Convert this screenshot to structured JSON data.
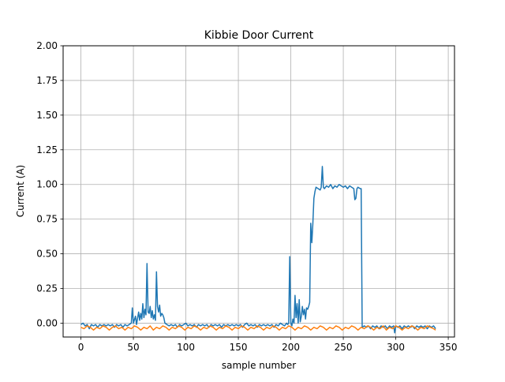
{
  "chart_data": {
    "type": "line",
    "title": "Kibbie Door Current",
    "xlabel": "sample number",
    "ylabel": "Current (A)",
    "xlim": [
      -16.95,
      355.95
    ],
    "ylim": [
      -0.1,
      2.0
    ],
    "x_ticks": [
      0,
      50,
      100,
      150,
      200,
      250,
      300,
      350
    ],
    "y_ticks": [
      0.0,
      0.25,
      0.5,
      0.75,
      1.0,
      1.25,
      1.5,
      1.75,
      2.0
    ],
    "x_tick_labels": [
      "0",
      "50",
      "100",
      "150",
      "200",
      "250",
      "300",
      "350"
    ],
    "y_tick_labels": [
      "0.00",
      "0.25",
      "0.50",
      "0.75",
      "1.00",
      "1.25",
      "1.50",
      "1.75",
      "2.00"
    ],
    "grid": true,
    "legend": "none",
    "series": [
      {
        "color": "#1f77b4",
        "points": [
          [
            0,
            -0.01
          ],
          [
            2,
            0.0
          ],
          [
            4,
            -0.02
          ],
          [
            6,
            -0.01
          ],
          [
            8,
            -0.04
          ],
          [
            10,
            -0.01
          ],
          [
            12,
            -0.02
          ],
          [
            14,
            -0.01
          ],
          [
            16,
            -0.03
          ],
          [
            18,
            -0.01
          ],
          [
            20,
            -0.02
          ],
          [
            22,
            -0.01
          ],
          [
            24,
            -0.02
          ],
          [
            26,
            -0.01
          ],
          [
            28,
            -0.02
          ],
          [
            30,
            -0.01
          ],
          [
            32,
            -0.03
          ],
          [
            34,
            -0.01
          ],
          [
            36,
            -0.02
          ],
          [
            38,
            -0.01
          ],
          [
            40,
            -0.03
          ],
          [
            42,
            -0.01
          ],
          [
            44,
            -0.02
          ],
          [
            46,
            -0.01
          ],
          [
            48,
            0.0
          ],
          [
            49,
            0.11
          ],
          [
            50,
            0.0
          ],
          [
            52,
            0.05
          ],
          [
            53,
            -0.01
          ],
          [
            55,
            0.08
          ],
          [
            56,
            0.02
          ],
          [
            57,
            0.07
          ],
          [
            58,
            0.03
          ],
          [
            59,
            0.14
          ],
          [
            60,
            0.04
          ],
          [
            61,
            0.1
          ],
          [
            62,
            0.06
          ],
          [
            63,
            0.43
          ],
          [
            64,
            0.08
          ],
          [
            65,
            0.07
          ],
          [
            66,
            0.12
          ],
          [
            67,
            0.04
          ],
          [
            68,
            0.09
          ],
          [
            69,
            0.03
          ],
          [
            70,
            0.06
          ],
          [
            71,
            0.02
          ],
          [
            72,
            0.37
          ],
          [
            73,
            0.12
          ],
          [
            74,
            0.08
          ],
          [
            75,
            0.13
          ],
          [
            76,
            0.05
          ],
          [
            77,
            0.07
          ],
          [
            78,
            0.06
          ],
          [
            79,
            0.04
          ],
          [
            80,
            0.0
          ],
          [
            82,
            -0.01
          ],
          [
            84,
            -0.02
          ],
          [
            86,
            -0.01
          ],
          [
            88,
            -0.02
          ],
          [
            90,
            -0.01
          ],
          [
            92,
            -0.03
          ],
          [
            94,
            -0.01
          ],
          [
            96,
            -0.02
          ],
          [
            98,
            -0.01
          ],
          [
            100,
            0.0
          ],
          [
            102,
            -0.02
          ],
          [
            104,
            -0.01
          ],
          [
            106,
            -0.02
          ],
          [
            108,
            -0.01
          ],
          [
            110,
            -0.03
          ],
          [
            112,
            -0.01
          ],
          [
            114,
            -0.02
          ],
          [
            116,
            -0.01
          ],
          [
            118,
            -0.02
          ],
          [
            120,
            -0.01
          ],
          [
            122,
            -0.03
          ],
          [
            124,
            -0.01
          ],
          [
            126,
            -0.02
          ],
          [
            128,
            -0.01
          ],
          [
            130,
            -0.02
          ],
          [
            132,
            -0.01
          ],
          [
            134,
            -0.03
          ],
          [
            136,
            -0.01
          ],
          [
            138,
            -0.02
          ],
          [
            140,
            -0.01
          ],
          [
            142,
            -0.02
          ],
          [
            144,
            -0.01
          ],
          [
            146,
            -0.02
          ],
          [
            148,
            -0.01
          ],
          [
            150,
            -0.02
          ],
          [
            152,
            -0.01
          ],
          [
            154,
            -0.03
          ],
          [
            156,
            -0.01
          ],
          [
            158,
            0.0
          ],
          [
            160,
            -0.02
          ],
          [
            162,
            -0.01
          ],
          [
            164,
            -0.02
          ],
          [
            166,
            -0.01
          ],
          [
            168,
            -0.03
          ],
          [
            170,
            -0.01
          ],
          [
            172,
            -0.02
          ],
          [
            174,
            -0.01
          ],
          [
            176,
            -0.02
          ],
          [
            178,
            -0.01
          ],
          [
            180,
            -0.02
          ],
          [
            182,
            -0.01
          ],
          [
            184,
            -0.03
          ],
          [
            186,
            -0.01
          ],
          [
            188,
            -0.02
          ],
          [
            190,
            0.0
          ],
          [
            192,
            -0.01
          ],
          [
            194,
            -0.02
          ],
          [
            196,
            0.0
          ],
          [
            197,
            -0.01
          ],
          [
            198,
            0.0
          ],
          [
            199,
            0.48
          ],
          [
            200,
            0.0
          ],
          [
            201,
            -0.02
          ],
          [
            202,
            0.03
          ],
          [
            203,
            0.0
          ],
          [
            204,
            0.2
          ],
          [
            205,
            0.04
          ],
          [
            206,
            0.14
          ],
          [
            207,
            0.0
          ],
          [
            208,
            0.17
          ],
          [
            209,
            0.01
          ],
          [
            210,
            0.05
          ],
          [
            211,
            0.12
          ],
          [
            212,
            0.06
          ],
          [
            213,
            0.1
          ],
          [
            214,
            0.03
          ],
          [
            215,
            0.11
          ],
          [
            216,
            0.1
          ],
          [
            217,
            0.12
          ],
          [
            218,
            0.15
          ],
          [
            219,
            0.72
          ],
          [
            220,
            0.58
          ],
          [
            221,
            0.72
          ],
          [
            222,
            0.9
          ],
          [
            223,
            0.95
          ],
          [
            224,
            0.98
          ],
          [
            226,
            0.97
          ],
          [
            228,
            0.96
          ],
          [
            229,
            0.98
          ],
          [
            230,
            1.13
          ],
          [
            231,
            0.98
          ],
          [
            232,
            0.97
          ],
          [
            234,
            0.99
          ],
          [
            236,
            0.98
          ],
          [
            238,
            1.0
          ],
          [
            240,
            0.97
          ],
          [
            242,
            0.99
          ],
          [
            244,
            0.98
          ],
          [
            246,
            1.0
          ],
          [
            248,
            0.99
          ],
          [
            250,
            0.98
          ],
          [
            252,
            0.99
          ],
          [
            254,
            0.97
          ],
          [
            256,
            0.99
          ],
          [
            258,
            0.98
          ],
          [
            260,
            0.97
          ],
          [
            261,
            0.89
          ],
          [
            262,
            0.9
          ],
          [
            263,
            0.97
          ],
          [
            264,
            0.98
          ],
          [
            266,
            0.97
          ],
          [
            267,
            0.97
          ],
          [
            268,
            -0.03
          ],
          [
            270,
            -0.02
          ],
          [
            272,
            -0.03
          ],
          [
            274,
            -0.02
          ],
          [
            276,
            -0.04
          ],
          [
            278,
            -0.02
          ],
          [
            280,
            -0.03
          ],
          [
            282,
            -0.02
          ],
          [
            284,
            -0.04
          ],
          [
            286,
            -0.02
          ],
          [
            288,
            -0.03
          ],
          [
            290,
            -0.02
          ],
          [
            292,
            -0.04
          ],
          [
            294,
            -0.02
          ],
          [
            296,
            -0.03
          ],
          [
            298,
            -0.02
          ],
          [
            299,
            -0.07
          ],
          [
            300,
            -0.02
          ],
          [
            302,
            -0.03
          ],
          [
            304,
            -0.02
          ],
          [
            306,
            -0.04
          ],
          [
            308,
            -0.02
          ],
          [
            310,
            -0.03
          ],
          [
            312,
            -0.02
          ],
          [
            314,
            -0.03
          ],
          [
            316,
            -0.02
          ],
          [
            318,
            -0.04
          ],
          [
            320,
            -0.02
          ],
          [
            322,
            -0.03
          ],
          [
            324,
            -0.02
          ],
          [
            326,
            -0.03
          ],
          [
            328,
            -0.02
          ],
          [
            330,
            -0.04
          ],
          [
            332,
            -0.02
          ],
          [
            334,
            -0.03
          ],
          [
            336,
            -0.02
          ],
          [
            338,
            -0.04
          ]
        ]
      },
      {
        "color": "#ff7f0e",
        "points": [
          [
            0,
            -0.03
          ],
          [
            3,
            -0.04
          ],
          [
            6,
            -0.02
          ],
          [
            9,
            -0.03
          ],
          [
            12,
            -0.05
          ],
          [
            15,
            -0.03
          ],
          [
            18,
            -0.04
          ],
          [
            21,
            -0.02
          ],
          [
            24,
            -0.03
          ],
          [
            27,
            -0.05
          ],
          [
            30,
            -0.03
          ],
          [
            33,
            -0.02
          ],
          [
            36,
            -0.04
          ],
          [
            39,
            -0.03
          ],
          [
            42,
            -0.05
          ],
          [
            45,
            -0.03
          ],
          [
            48,
            -0.04
          ],
          [
            51,
            -0.02
          ],
          [
            54,
            -0.03
          ],
          [
            57,
            -0.05
          ],
          [
            60,
            -0.03
          ],
          [
            63,
            -0.04
          ],
          [
            66,
            -0.02
          ],
          [
            69,
            -0.05
          ],
          [
            72,
            -0.03
          ],
          [
            75,
            -0.04
          ],
          [
            78,
            -0.02
          ],
          [
            81,
            -0.03
          ],
          [
            84,
            -0.05
          ],
          [
            87,
            -0.03
          ],
          [
            90,
            -0.04
          ],
          [
            93,
            -0.02
          ],
          [
            96,
            -0.03
          ],
          [
            99,
            -0.05
          ],
          [
            102,
            -0.03
          ],
          [
            105,
            -0.04
          ],
          [
            108,
            -0.02
          ],
          [
            111,
            -0.03
          ],
          [
            114,
            -0.05
          ],
          [
            117,
            -0.03
          ],
          [
            120,
            -0.04
          ],
          [
            123,
            -0.02
          ],
          [
            126,
            -0.03
          ],
          [
            129,
            -0.05
          ],
          [
            132,
            -0.03
          ],
          [
            135,
            -0.04
          ],
          [
            138,
            -0.02
          ],
          [
            141,
            -0.03
          ],
          [
            144,
            -0.05
          ],
          [
            147,
            -0.03
          ],
          [
            150,
            -0.04
          ],
          [
            153,
            -0.02
          ],
          [
            156,
            -0.03
          ],
          [
            159,
            -0.05
          ],
          [
            162,
            -0.03
          ],
          [
            165,
            -0.04
          ],
          [
            168,
            -0.02
          ],
          [
            171,
            -0.03
          ],
          [
            174,
            -0.05
          ],
          [
            177,
            -0.03
          ],
          [
            180,
            -0.04
          ],
          [
            183,
            -0.02
          ],
          [
            186,
            -0.03
          ],
          [
            189,
            -0.05
          ],
          [
            192,
            -0.03
          ],
          [
            195,
            -0.04
          ],
          [
            198,
            -0.02
          ],
          [
            201,
            -0.03
          ],
          [
            204,
            -0.05
          ],
          [
            207,
            -0.03
          ],
          [
            210,
            -0.04
          ],
          [
            213,
            -0.02
          ],
          [
            216,
            -0.03
          ],
          [
            219,
            -0.05
          ],
          [
            222,
            -0.03
          ],
          [
            225,
            -0.04
          ],
          [
            228,
            -0.02
          ],
          [
            231,
            -0.03
          ],
          [
            234,
            -0.05
          ],
          [
            237,
            -0.03
          ],
          [
            240,
            -0.04
          ],
          [
            243,
            -0.02
          ],
          [
            246,
            -0.03
          ],
          [
            249,
            -0.05
          ],
          [
            252,
            -0.03
          ],
          [
            255,
            -0.04
          ],
          [
            258,
            -0.02
          ],
          [
            261,
            -0.03
          ],
          [
            264,
            -0.05
          ],
          [
            267,
            -0.03
          ],
          [
            270,
            -0.04
          ],
          [
            273,
            -0.02
          ],
          [
            276,
            -0.03
          ],
          [
            279,
            -0.05
          ],
          [
            282,
            -0.03
          ],
          [
            285,
            -0.04
          ],
          [
            288,
            -0.02
          ],
          [
            291,
            -0.05
          ],
          [
            294,
            -0.03
          ],
          [
            297,
            -0.04
          ],
          [
            300,
            -0.02
          ],
          [
            303,
            -0.03
          ],
          [
            306,
            -0.05
          ],
          [
            309,
            -0.03
          ],
          [
            312,
            -0.04
          ],
          [
            315,
            -0.02
          ],
          [
            318,
            -0.03
          ],
          [
            321,
            -0.05
          ],
          [
            324,
            -0.03
          ],
          [
            327,
            -0.04
          ],
          [
            330,
            -0.02
          ],
          [
            333,
            -0.03
          ],
          [
            336,
            -0.04
          ],
          [
            338,
            -0.05
          ]
        ]
      }
    ]
  }
}
